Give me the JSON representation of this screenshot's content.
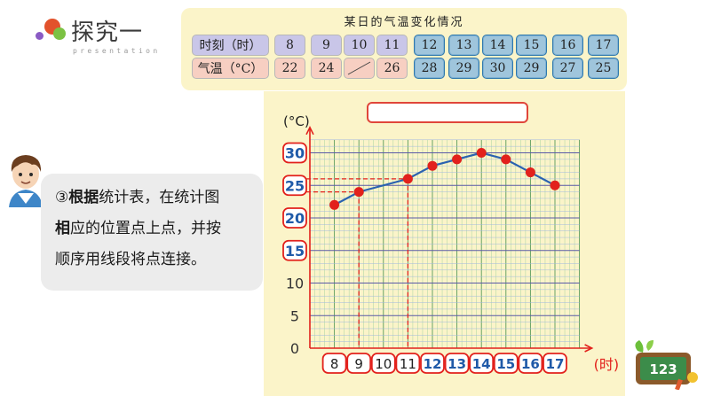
{
  "header": {
    "title": "探究一",
    "subtitle": "presentation",
    "dot_colors": [
      "#e2522c",
      "#7cc243",
      "#8a5bc4"
    ]
  },
  "table": {
    "caption": "某日的气温变化情况",
    "row1_label": "时刻（时）",
    "row2_label": "气温（°C）",
    "hours": [
      "8",
      "9",
      "10",
      "11",
      "12",
      "13",
      "14",
      "15",
      "16",
      "17"
    ],
    "temps": [
      "22",
      "24",
      "",
      "26",
      "28",
      "29",
      "30",
      "29",
      "27",
      "25"
    ],
    "highlighted_from_hour": "12"
  },
  "bubble": {
    "marker": "③",
    "bold_text": "根据",
    "text_part1": "统计表，在统计图",
    "bold_text2": "相",
    "text_part2": "应的位置点上点，并按",
    "text_part3": "顺序用线段将点连接。"
  },
  "chart_data": {
    "type": "line",
    "x": [
      "8",
      "9",
      "11",
      "12",
      "13",
      "14",
      "15",
      "16",
      "17"
    ],
    "values": [
      22,
      24,
      26,
      28,
      29,
      30,
      29,
      27,
      25
    ],
    "series": [
      {
        "values": [
          22,
          24,
          26,
          28,
          29,
          30,
          29,
          27,
          25
        ]
      }
    ],
    "categories": [
      "8",
      "9",
      "10",
      "11",
      "12",
      "13",
      "14",
      "15",
      "16",
      "17"
    ],
    "yticks": [
      "0",
      "5",
      "10",
      "15",
      "20",
      "25",
      "30"
    ],
    "ylabel": "(°C)",
    "xlabel": "(时)",
    "ylim": [
      0,
      32
    ],
    "grid": true,
    "highlighted_y_ticks": [
      "15",
      "20",
      "25",
      "30"
    ],
    "highlighted_x_ticks": [
      "12",
      "13",
      "14",
      "15",
      "16",
      "17"
    ],
    "title": "",
    "line_color": "#2a62b0",
    "point_color": "#e2211c"
  },
  "badge": {
    "text": "123"
  }
}
